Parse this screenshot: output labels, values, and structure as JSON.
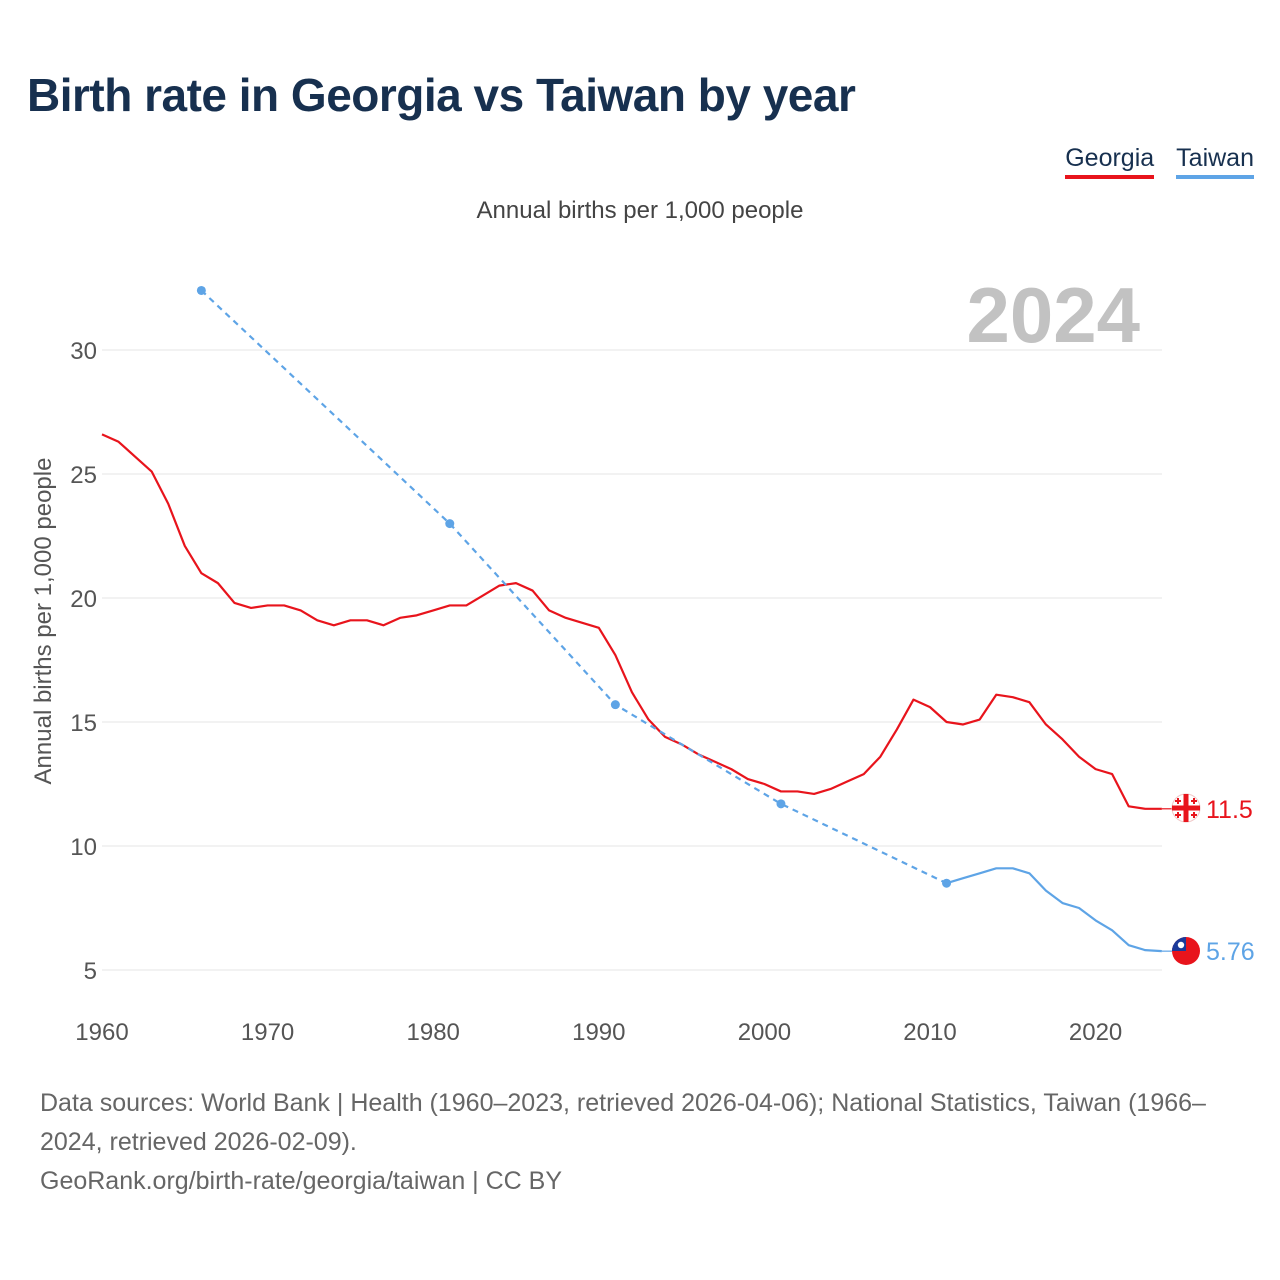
{
  "title": "Birth rate in Georgia vs Taiwan by year",
  "legend": [
    {
      "label": "Georgia",
      "color": "#e8141c"
    },
    {
      "label": "Taiwan",
      "color": "#5ea4e6"
    }
  ],
  "chart_data": {
    "type": "line",
    "title": "Birth rate in Georgia vs Taiwan by year",
    "subtitle": "Annual births per 1,000 people",
    "ylabel": "Annual births per 1,000 people",
    "xlabel": "",
    "year_label": "2024",
    "xlim": [
      1960,
      2025
    ],
    "ylim": [
      4,
      33
    ],
    "x_ticks": [
      1960,
      1970,
      1980,
      1990,
      2000,
      2010,
      2020
    ],
    "y_ticks": [
      5,
      10,
      15,
      20,
      25,
      30
    ],
    "grid": true,
    "series": [
      {
        "name": "Georgia",
        "color": "#e8141c",
        "end_label": "11.5",
        "x": [
          1960,
          1961,
          1962,
          1963,
          1964,
          1965,
          1966,
          1967,
          1968,
          1969,
          1970,
          1971,
          1972,
          1973,
          1974,
          1975,
          1976,
          1977,
          1978,
          1979,
          1980,
          1981,
          1982,
          1983,
          1984,
          1985,
          1986,
          1987,
          1988,
          1989,
          1990,
          1991,
          1992,
          1993,
          1994,
          1995,
          1996,
          1997,
          1998,
          1999,
          2000,
          2001,
          2002,
          2003,
          2004,
          2005,
          2006,
          2007,
          2008,
          2009,
          2010,
          2011,
          2012,
          2013,
          2014,
          2015,
          2016,
          2017,
          2018,
          2019,
          2020,
          2021,
          2022,
          2023,
          2024
        ],
        "values": [
          26.6,
          26.3,
          25.7,
          25.1,
          23.8,
          22.1,
          21.0,
          20.6,
          19.8,
          19.6,
          19.7,
          19.7,
          19.5,
          19.1,
          18.9,
          19.1,
          19.1,
          18.9,
          19.2,
          19.3,
          19.5,
          19.7,
          19.7,
          20.1,
          20.5,
          20.6,
          20.3,
          19.5,
          19.2,
          19.0,
          18.8,
          17.7,
          16.2,
          15.1,
          14.4,
          14.1,
          13.7,
          13.4,
          13.1,
          12.7,
          12.5,
          12.2,
          12.2,
          12.1,
          12.3,
          12.6,
          12.9,
          13.6,
          14.7,
          15.9,
          15.6,
          15.0,
          14.9,
          15.1,
          16.1,
          16.0,
          15.8,
          14.9,
          14.3,
          13.6,
          13.1,
          12.9,
          11.6,
          11.5,
          11.5
        ]
      },
      {
        "name": "Taiwan",
        "color": "#5ea4e6",
        "end_label": "5.76",
        "x": [
          1966,
          1981,
          1991,
          2001,
          2011,
          2012,
          2013,
          2014,
          2015,
          2016,
          2017,
          2018,
          2019,
          2020,
          2021,
          2022,
          2023,
          2024
        ],
        "values": [
          32.4,
          23.0,
          15.7,
          11.7,
          8.5,
          8.7,
          8.9,
          9.1,
          9.1,
          8.9,
          8.2,
          7.7,
          7.5,
          7.0,
          6.6,
          6.0,
          5.8,
          5.76
        ],
        "dashed_until": 2011
      }
    ]
  },
  "footer": {
    "sources": "Data sources: World Bank | Health (1960–2023, retrieved 2026-04-06); National Statistics, Taiwan (1966–2024, retrieved 2026-02-09).",
    "credit": "GeoRank.org/birth-rate/georgia/taiwan | CC BY"
  }
}
